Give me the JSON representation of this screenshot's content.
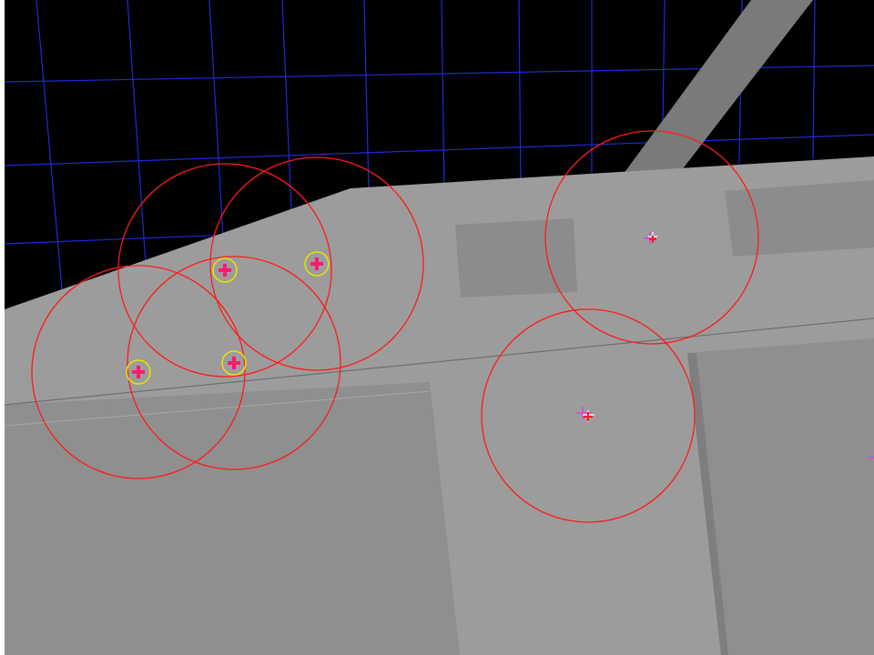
{
  "colors": {
    "background": "#000000",
    "grid": "#1f2bd6",
    "plane": "#9c9c9c",
    "plane_dark": "#8f8f8f",
    "panel_recess": "#8c8c8c",
    "beam": "#7a7a7a",
    "circle": "#ff1a1a",
    "highlight_ring": "#e5e500",
    "marker_cross": "#ff1a70",
    "target_cross": "#e040e0",
    "edge_line": "#6e6e6e"
  },
  "markers": [
    {
      "id": "marker-1",
      "selected": true
    },
    {
      "id": "marker-2",
      "selected": true
    },
    {
      "id": "marker-3",
      "selected": true
    },
    {
      "id": "marker-4",
      "selected": true
    },
    {
      "id": "marker-5",
      "selected": false
    },
    {
      "id": "marker-6",
      "selected": false
    }
  ]
}
